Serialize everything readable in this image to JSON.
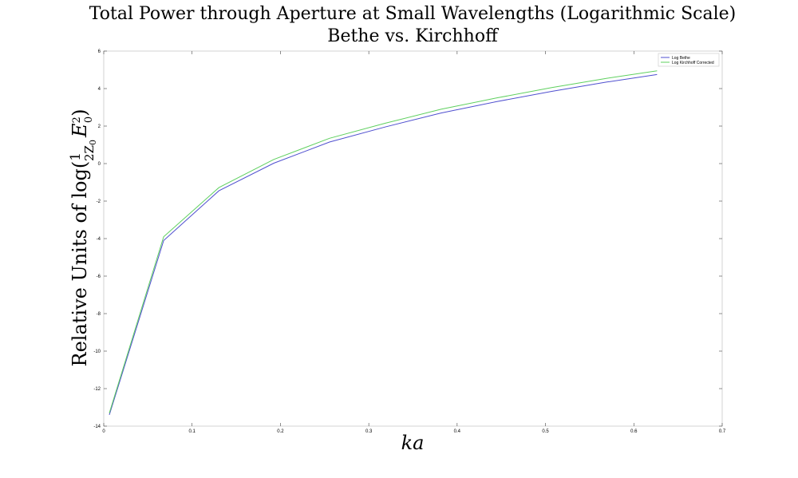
{
  "chart_data": {
    "type": "line",
    "title": "Total Power through Aperture at Small Wavelengths (Logarithmic Scale)",
    "subtitle": "Bethe vs. Kirchhoff",
    "xlabel": "ka",
    "ylabel": "Relative Units of log(1/(2Z₀) E₀²)",
    "ylabel_prefix": "Relative Units of log",
    "xlim": [
      0,
      0.7
    ],
    "ylim": [
      -14,
      6
    ],
    "xticks": [
      0,
      0.1,
      0.2,
      0.3,
      0.4,
      0.5,
      0.6,
      0.7
    ],
    "xtick_labels": [
      "0",
      "0.1",
      "0.2",
      "0.3",
      "0.4",
      "0.5",
      "0.6",
      "0.7"
    ],
    "yticks": [
      -14,
      -12,
      -10,
      -8,
      -6,
      -4,
      -2,
      0,
      2,
      4,
      6
    ],
    "ytick_labels": [
      "-14",
      "-12",
      "-10",
      "-8",
      "-6",
      "-4",
      "-2",
      "0",
      "2",
      "4",
      "6"
    ],
    "grid": false,
    "legend_position": "top-right",
    "series": [
      {
        "name": "Log Bethe",
        "color": "#4f4fcf",
        "x": [
          0.0063,
          0.0678,
          0.1303,
          0.1925,
          0.2555,
          0.3183,
          0.3818,
          0.4445,
          0.5071,
          0.5695,
          0.6263
        ],
        "y": [
          -13.4,
          -4.1,
          -1.45,
          0.02,
          1.15,
          1.95,
          2.7,
          3.3,
          3.85,
          4.35,
          4.75
        ]
      },
      {
        "name": "Log Kirchhoff Corrected",
        "color": "#5fd05f",
        "x": [
          0.0063,
          0.0678,
          0.1303,
          0.1925,
          0.2555,
          0.3183,
          0.3818,
          0.4445,
          0.5071,
          0.5695,
          0.6263
        ],
        "y": [
          -13.3,
          -3.9,
          -1.28,
          0.22,
          1.35,
          2.15,
          2.9,
          3.5,
          4.05,
          4.55,
          4.95
        ]
      }
    ]
  }
}
